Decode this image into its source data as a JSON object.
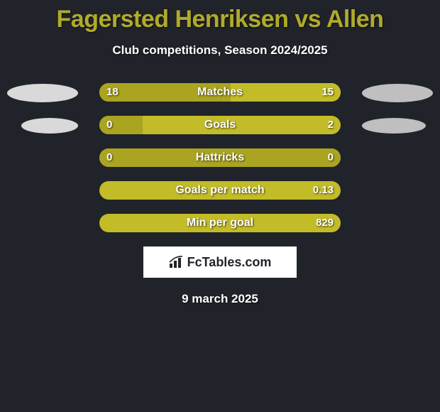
{
  "background_color": "#20232a",
  "title": {
    "text": "Fagersted Henriksen vs Allen",
    "color": "#b0ab2a",
    "fontsize": 34
  },
  "subtitle": {
    "text": "Club competitions, Season 2024/2025",
    "color": "#ffffff",
    "fontsize": 17
  },
  "bar_colors": {
    "left": "#aaa420",
    "right": "#c2bc28",
    "track": "#c2bc28"
  },
  "ellipse_colors": {
    "left": "#d9d9d9",
    "right": "#bfbfbf"
  },
  "rows": [
    {
      "label": "Matches",
      "left_val": "18",
      "right_val": "15",
      "left_pct": 54.5,
      "right_pct": 45.5,
      "show_ellipses": true
    },
    {
      "label": "Goals",
      "left_val": "0",
      "right_val": "2",
      "left_pct": 0,
      "right_pct": 100,
      "show_ellipses": true,
      "left_bg_only": 18
    },
    {
      "label": "Hattricks",
      "left_val": "0",
      "right_val": "0",
      "left_pct": 100,
      "right_pct": 0,
      "show_ellipses": false
    },
    {
      "label": "Goals per match",
      "left_val": "",
      "right_val": "0.13",
      "left_pct": 0,
      "right_pct": 100,
      "show_ellipses": false
    },
    {
      "label": "Min per goal",
      "left_val": "",
      "right_val": "829",
      "left_pct": 0,
      "right_pct": 100,
      "show_ellipses": false
    }
  ],
  "logo": {
    "bg": "#ffffff",
    "text": "FcTables.com",
    "text_color": "#20232a",
    "icon_color": "#20232a"
  },
  "date": {
    "text": "9 march 2025",
    "color": "#ffffff"
  }
}
